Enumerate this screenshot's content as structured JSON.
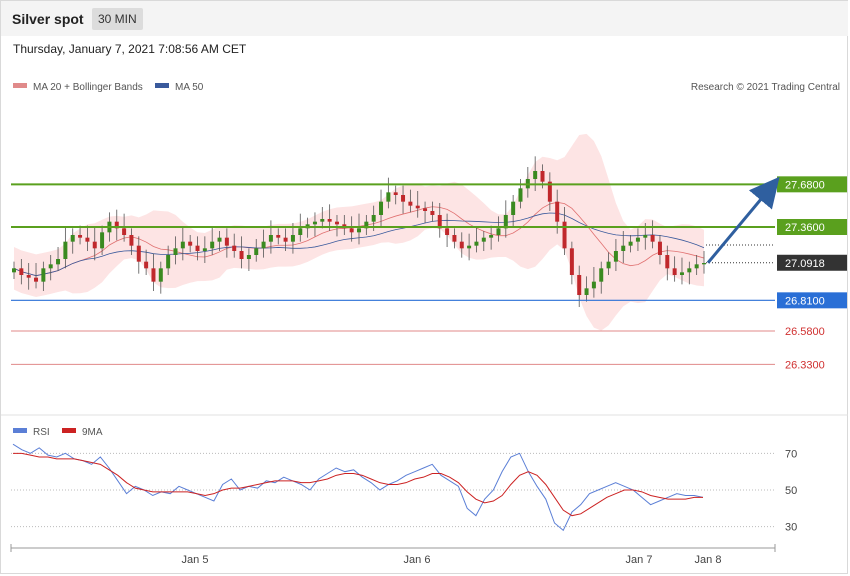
{
  "header": {
    "instrument": "Silver spot",
    "timeframe": "30 MIN",
    "timestamp": "Thursday, January 7, 2021 7:08:56 AM CET"
  },
  "legend": {
    "ma20": "MA 20 + Bollinger Bands",
    "ma50": "MA 50",
    "credit": "Research © 2021 Trading Central",
    "rsi": "RSI",
    "rsi_ma": "9MA"
  },
  "colors": {
    "resistance": "#5aa01e",
    "support": "#2a6fd6",
    "support_red": "#d03030",
    "up_candle": "#3a8a20",
    "down_candle": "#c0282c",
    "ma20": "#e07070",
    "ma50": "#3a5a9c",
    "bollinger_fill": "#fde4e4",
    "rsi": "#5b7fd6",
    "rsi_ma": "#cc2222",
    "arrow": "#2f5f9f",
    "current_price": "#333333"
  },
  "chart_data": [
    {
      "type": "line",
      "title": "Silver spot",
      "x_tick_labels": [
        "Jan 5",
        "Jan 6",
        "Jan 7",
        "Jan 8"
      ],
      "y_range": [
        25.95,
        28.65
      ],
      "levels": [
        {
          "name": "resistance 2",
          "value": 27.68,
          "label": "27.6800",
          "kind": "resistance"
        },
        {
          "name": "resistance 1",
          "value": 27.36,
          "label": "27.3600",
          "kind": "resistance"
        },
        {
          "name": "current price",
          "value": 27.0918,
          "label": "27.0918",
          "kind": "current"
        },
        {
          "name": "support 1",
          "value": 26.81,
          "label": "26.8100",
          "kind": "support"
        },
        {
          "name": "support 2",
          "value": 26.58,
          "label": "26.5800",
          "kind": "support_red"
        },
        {
          "name": "support 3",
          "value": 26.33,
          "label": "26.3300",
          "kind": "support_red"
        }
      ],
      "forecast_arrow": {
        "from": 27.0918,
        "to": 27.68
      },
      "close_series": [
        27.05,
        27.0,
        26.98,
        26.95,
        27.05,
        27.08,
        27.12,
        27.25,
        27.3,
        27.28,
        27.25,
        27.2,
        27.32,
        27.4,
        27.35,
        27.3,
        27.22,
        27.1,
        27.05,
        26.95,
        27.05,
        27.15,
        27.2,
        27.25,
        27.22,
        27.18,
        27.2,
        27.25,
        27.28,
        27.22,
        27.18,
        27.12,
        27.15,
        27.2,
        27.25,
        27.3,
        27.28,
        27.25,
        27.3,
        27.35,
        27.38,
        27.4,
        27.42,
        27.4,
        27.38,
        27.35,
        27.32,
        27.35,
        27.4,
        27.45,
        27.55,
        27.62,
        27.6,
        27.55,
        27.52,
        27.5,
        27.48,
        27.45,
        27.35,
        27.3,
        27.25,
        27.2,
        27.22,
        27.25,
        27.28,
        27.3,
        27.35,
        27.45,
        27.55,
        27.65,
        27.72,
        27.78,
        27.7,
        27.55,
        27.4,
        27.2,
        27.0,
        26.85,
        26.9,
        26.95,
        27.05,
        27.1,
        27.18,
        27.22,
        27.25,
        27.28,
        27.3,
        27.25,
        27.15,
        27.05,
        27.0,
        27.02,
        27.05,
        27.08,
        27.09
      ]
    },
    {
      "type": "line",
      "title": "RSI",
      "y_range": [
        20,
        80
      ],
      "y_ticks": [
        70,
        50,
        30
      ],
      "series_names": [
        "RSI",
        "9MA"
      ],
      "rsi": [
        75,
        72,
        70,
        73,
        69,
        68,
        70,
        67,
        66,
        64,
        68,
        62,
        55,
        48,
        52,
        50,
        47,
        49,
        48,
        52,
        50,
        48,
        46,
        44,
        53,
        56,
        50,
        52,
        51,
        55,
        54,
        57,
        55,
        53,
        50,
        56,
        59,
        62,
        60,
        61,
        57,
        54,
        50,
        53,
        55,
        58,
        60,
        62,
        64,
        58,
        55,
        52,
        40,
        36,
        45,
        50,
        60,
        68,
        70,
        60,
        52,
        45,
        32,
        28,
        38,
        42,
        48,
        50,
        52,
        54,
        52,
        50,
        46,
        42,
        44,
        46,
        48,
        47,
        47,
        46
      ],
      "rsi_ma": [
        70,
        70,
        69,
        68,
        68,
        67,
        67,
        67,
        66,
        65,
        64,
        61,
        58,
        54,
        51,
        50,
        49,
        49,
        49,
        49,
        49,
        48,
        47,
        48,
        50,
        51,
        51,
        52,
        53,
        54,
        55,
        55,
        55,
        54,
        54,
        55,
        56,
        58,
        59,
        59,
        58,
        56,
        54,
        53,
        53,
        54,
        56,
        57,
        59,
        59,
        57,
        54,
        49,
        45,
        43,
        44,
        47,
        53,
        58,
        60,
        58,
        53,
        46,
        39,
        36,
        37,
        40,
        43,
        46,
        48,
        50,
        50,
        49,
        47,
        46,
        45,
        45,
        45,
        46,
        46
      ]
    }
  ]
}
